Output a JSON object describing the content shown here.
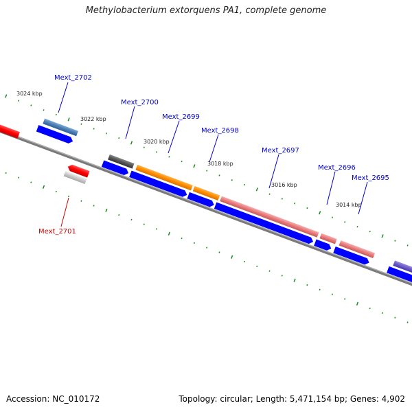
{
  "title": "Methylobacterium extorquens PA1, complete genome",
  "footer": {
    "accession": "Accession: NC_010172",
    "summary": "Topology: circular; Length: 5,471,154 bp; Genes: 4,902"
  },
  "ticks": [
    {
      "kbp": 3024,
      "label": "3024 kbp"
    },
    {
      "kbp": 3022,
      "label": "3022 kbp"
    },
    {
      "kbp": 3020,
      "label": "3020 kbp"
    },
    {
      "kbp": 3018,
      "label": "3018 kbp"
    },
    {
      "kbp": 3016,
      "label": "3016 kbp"
    },
    {
      "kbp": 3014,
      "label": "3014 kbp"
    }
  ],
  "genes": [
    {
      "id": "mext-2702",
      "label": "Mext_2702",
      "strand": "+",
      "color": "#4a7fb5"
    },
    {
      "id": "mext-2701",
      "label": "Mext_2701",
      "strand": "-",
      "color": "#c8c8c8"
    },
    {
      "id": "mext-2700",
      "label": "Mext_2700",
      "strand": "+",
      "color": "#555555"
    },
    {
      "id": "mext-2699",
      "label": "Mext_2699",
      "strand": "+",
      "color": "#ff8c00"
    },
    {
      "id": "mext-2698",
      "label": "Mext_2698",
      "strand": "+",
      "color": "#ff8c00"
    },
    {
      "id": "mext-2697",
      "label": "Mext_2697",
      "strand": "+",
      "color": "#e87a7a"
    },
    {
      "id": "mext-2696",
      "label": "Mext_2696",
      "strand": "+",
      "color": "#e87a7a"
    },
    {
      "id": "mext-2695",
      "label": "Mext_2695",
      "strand": "+",
      "color": "#e87a7a"
    }
  ],
  "colors": {
    "label_forward": "#0000cc",
    "label_reverse": "#cc0000",
    "cds": "#0000ff",
    "backbone": "#808080",
    "tick": "#1a8a1a",
    "reverse_cds": "#ff0000"
  }
}
